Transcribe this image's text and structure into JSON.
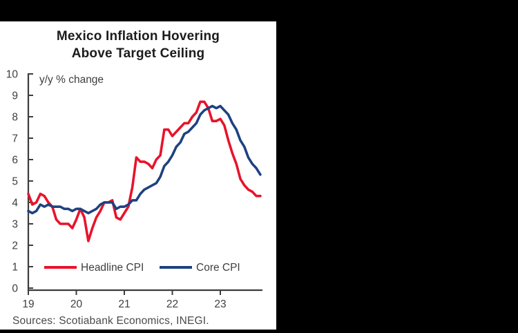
{
  "window": {
    "background_color": "#000000"
  },
  "panel": {
    "background_color": "#ffffff"
  },
  "chart": {
    "title_line1": "Mexico Inflation Hovering",
    "title_line2": "Above Target Ceiling",
    "annotation": "y/y % change",
    "source_note": "Sources: Scotiabank Economics, INEGI.",
    "legend": {
      "headline_label": "Headline CPI",
      "core_label": "Core CPI"
    }
  },
  "chart_data": {
    "type": "line",
    "title": "Mexico Inflation Hovering Above Target Ceiling",
    "ylabel": "y/y % change",
    "xlabel": "",
    "ylim": [
      0,
      10
    ],
    "y_ticks": [
      0,
      1,
      2,
      3,
      4,
      5,
      6,
      7,
      8,
      9,
      10
    ],
    "x_tick_labels": [
      "19",
      "20",
      "21",
      "22",
      "23"
    ],
    "x_start": "2019-01",
    "x_frequency": "monthly",
    "grid": false,
    "legend_position": "inside-bottom",
    "axis_color": "#3c3c3c",
    "source": "Sources: Scotiabank Economics, INEGI.",
    "series": [
      {
        "name": "Headline CPI",
        "color": "#e8132b",
        "values": [
          4.4,
          3.9,
          4.0,
          4.4,
          4.3,
          4.0,
          3.8,
          3.2,
          3.0,
          3.0,
          3.0,
          2.8,
          3.2,
          3.7,
          3.3,
          2.2,
          2.8,
          3.3,
          3.6,
          4.0,
          4.0,
          4.1,
          3.3,
          3.2,
          3.5,
          3.8,
          4.7,
          6.1,
          5.9,
          5.9,
          5.8,
          5.6,
          6.0,
          6.2,
          7.4,
          7.4,
          7.1,
          7.3,
          7.5,
          7.7,
          7.7,
          8.0,
          8.2,
          8.7,
          8.7,
          8.4,
          7.8,
          7.8,
          7.9,
          7.6,
          6.9,
          6.3,
          5.8,
          5.1,
          4.8,
          4.6,
          4.5,
          4.3,
          4.3
        ]
      },
      {
        "name": "Core CPI",
        "color": "#1e4280",
        "values": [
          3.6,
          3.5,
          3.6,
          3.9,
          3.8,
          3.9,
          3.8,
          3.8,
          3.8,
          3.7,
          3.7,
          3.6,
          3.7,
          3.7,
          3.6,
          3.5,
          3.6,
          3.7,
          3.9,
          4.0,
          4.0,
          4.0,
          3.7,
          3.8,
          3.8,
          3.9,
          4.1,
          4.1,
          4.4,
          4.6,
          4.7,
          4.8,
          4.9,
          5.2,
          5.7,
          5.9,
          6.2,
          6.6,
          6.8,
          7.2,
          7.3,
          7.5,
          7.7,
          8.1,
          8.3,
          8.4,
          8.5,
          8.4,
          8.5,
          8.3,
          8.1,
          7.7,
          7.4,
          6.9,
          6.6,
          6.1,
          5.8,
          5.6,
          5.3
        ]
      }
    ]
  }
}
